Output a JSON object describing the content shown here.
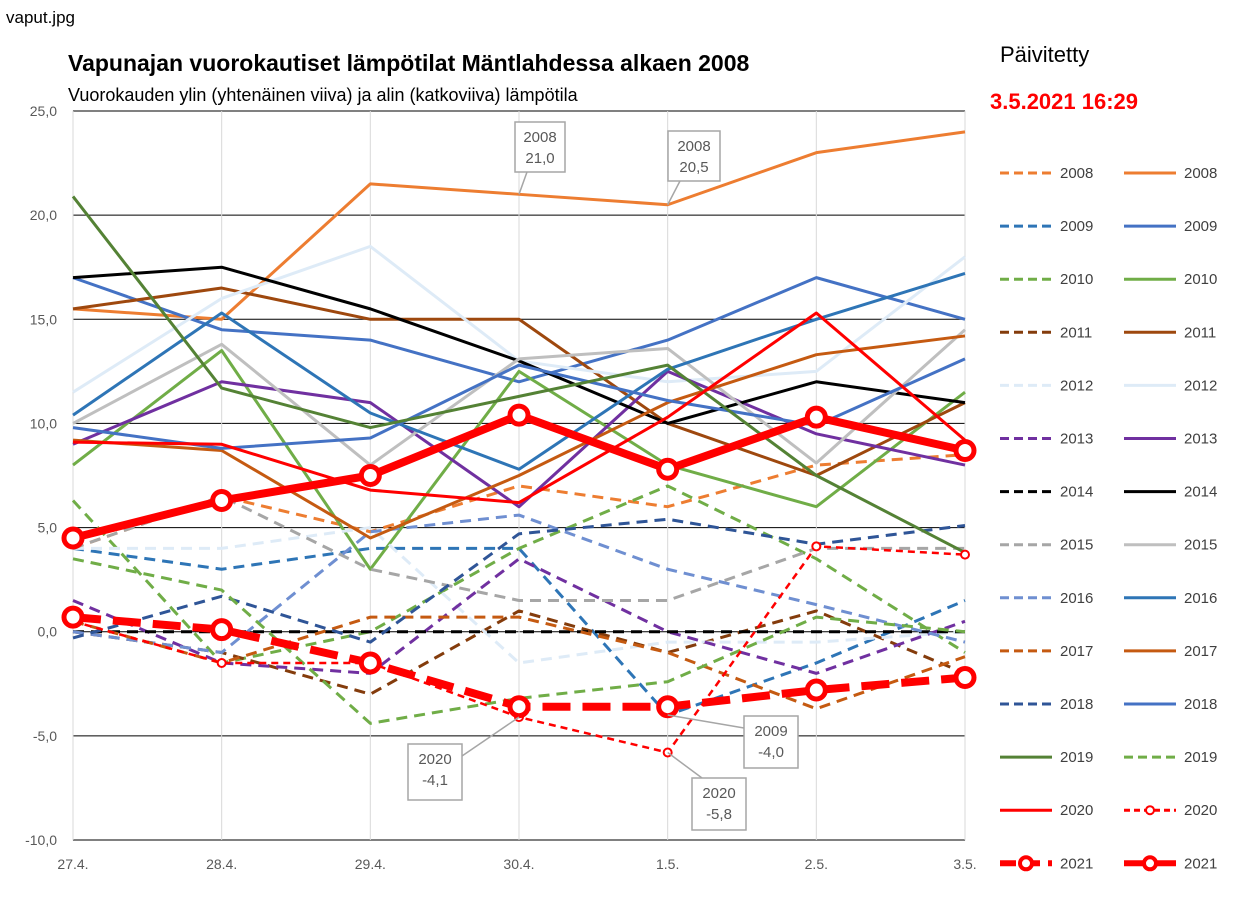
{
  "filename": "vaput.jpg",
  "title": "Vapunajan vuorokautiset lämpötilat Mäntlahdessa alkaen 2008",
  "subtitle": "Vuorokauden ylin (yhtenäinen viiva) ja alin (katkoviiva) lämpötila",
  "updated_label": "Päivitetty",
  "updated_value": "3.5.2021 16:29",
  "chart_data": {
    "type": "line",
    "categories": [
      "27.4.",
      "28.4.",
      "29.4.",
      "30.4.",
      "1.5.",
      "2.5.",
      "3.5."
    ],
    "ylim": [
      -10,
      25
    ],
    "yticks": [
      "-10,0",
      "-5,0",
      "0,0",
      "5,0",
      "10,0",
      "15,0",
      "20,0",
      "25,0"
    ],
    "grid": true,
    "legend_position": "right",
    "series": [
      {
        "name": "2008",
        "kind": "min",
        "color": "#ED7D31",
        "values": [
          4.0,
          6.5,
          4.8,
          7.0,
          6.0,
          8.0,
          8.5
        ]
      },
      {
        "name": "2008",
        "kind": "max",
        "color": "#ED7D31",
        "values": [
          15.5,
          15.0,
          21.5,
          21.0,
          20.5,
          23.0,
          24.0
        ]
      },
      {
        "name": "2009",
        "kind": "min",
        "color": "#2E75B6",
        "values": [
          4.0,
          3.0,
          4.0,
          4.0,
          -4.0,
          -1.5,
          1.5
        ]
      },
      {
        "name": "2009",
        "kind": "max",
        "color": "#4472C4",
        "values": [
          17.0,
          14.5,
          14.0,
          12.0,
          14.0,
          17.0,
          15.0
        ]
      },
      {
        "name": "2010",
        "kind": "min",
        "color": "#70AD47",
        "values": [
          6.3,
          -1.5,
          0.0,
          4.0,
          7.0,
          3.5,
          -1.0
        ]
      },
      {
        "name": "2010",
        "kind": "max",
        "color": "#70AD47",
        "values": [
          8.0,
          13.5,
          3.0,
          12.5,
          8.0,
          6.0,
          11.5
        ]
      },
      {
        "name": "2011",
        "kind": "min",
        "color": "#843C0C",
        "values": [
          0.0,
          -1.0,
          -3.0,
          1.0,
          -1.0,
          1.0,
          -2.0
        ]
      },
      {
        "name": "2011",
        "kind": "max",
        "color": "#9E480E",
        "values": [
          15.5,
          16.5,
          15.0,
          15.0,
          10.0,
          7.5,
          11.0
        ]
      },
      {
        "name": "2012",
        "kind": "min",
        "color": "#DEEBF7",
        "values": [
          4.0,
          4.0,
          5.0,
          -1.5,
          -0.5,
          -0.5,
          0.0
        ]
      },
      {
        "name": "2012",
        "kind": "max",
        "color": "#DEEBF7",
        "values": [
          11.5,
          16.0,
          18.5,
          13.0,
          12.0,
          12.5,
          18.0
        ]
      },
      {
        "name": "2013",
        "kind": "min",
        "color": "#7030A0",
        "values": [
          1.5,
          -1.5,
          -2.0,
          3.5,
          0.0,
          -2.0,
          0.5
        ]
      },
      {
        "name": "2013",
        "kind": "max",
        "color": "#7030A0",
        "values": [
          9.0,
          12.0,
          11.0,
          6.0,
          12.5,
          9.5,
          8.0
        ]
      },
      {
        "name": "2014",
        "kind": "min",
        "color": "#000000",
        "values": [
          0.0,
          0.0,
          0.0,
          0.0,
          0.0,
          0.0,
          0.0
        ]
      },
      {
        "name": "2014",
        "kind": "max",
        "color": "#000000",
        "values": [
          17.0,
          17.5,
          15.5,
          13.0,
          10.0,
          12.0,
          11.0
        ]
      },
      {
        "name": "2015",
        "kind": "min",
        "color": "#A6A6A6",
        "values": [
          4.0,
          6.5,
          3.0,
          1.5,
          1.5,
          4.0,
          4.0
        ]
      },
      {
        "name": "2015",
        "kind": "max",
        "color": "#BFBFBF",
        "values": [
          10.0,
          13.8,
          8.0,
          13.1,
          13.6,
          8.1,
          14.5
        ]
      },
      {
        "name": "2016",
        "kind": "min",
        "color": "#6F8FD1",
        "values": [
          0.0,
          -1.0,
          4.8,
          5.6,
          3.0,
          1.3,
          -0.5
        ]
      },
      {
        "name": "2016",
        "kind": "max",
        "color": "#2E75B6",
        "values": [
          10.4,
          15.3,
          10.5,
          7.8,
          12.6,
          15.0,
          17.2
        ]
      },
      {
        "name": "2017",
        "kind": "min",
        "color": "#C55A11",
        "values": [
          0.5,
          -1.5,
          0.7,
          0.7,
          -1.0,
          -3.7,
          -1.2
        ]
      },
      {
        "name": "2017",
        "kind": "max",
        "color": "#C55A11",
        "values": [
          9.2,
          8.7,
          4.5,
          7.5,
          11.0,
          13.3,
          14.2
        ]
      },
      {
        "name": "2018",
        "kind": "min",
        "color": "#2F5597",
        "values": [
          -0.3,
          1.7,
          -0.5,
          4.7,
          5.4,
          4.2,
          5.1
        ]
      },
      {
        "name": "2018",
        "kind": "max",
        "color": "#4472C4",
        "values": [
          9.8,
          8.8,
          9.3,
          12.8,
          11.1,
          9.9,
          13.1
        ]
      },
      {
        "name": "2019",
        "kind": "max",
        "color": "#548235",
        "values": [
          20.9,
          11.7,
          9.8,
          11.3,
          12.8,
          7.5,
          3.8
        ]
      },
      {
        "name": "2019",
        "kind": "min",
        "color": "#70AD47",
        "values": [
          3.5,
          2.0,
          -4.4,
          -3.2,
          -2.4,
          0.7,
          0.0
        ]
      },
      {
        "name": "2020",
        "kind": "max",
        "color": "#FF0000",
        "values": [
          9.1,
          9.0,
          6.8,
          6.2,
          10.3,
          15.3,
          9.2
        ]
      },
      {
        "name": "2020",
        "kind": "min",
        "color": "#FF0000",
        "values": [
          0.5,
          -1.5,
          -1.5,
          -4.1,
          -5.8,
          4.1,
          3.7
        ]
      },
      {
        "name": "2021",
        "kind": "min",
        "color": "#FF0000",
        "values": [
          0.7,
          0.1,
          -1.5,
          -3.6,
          -3.6,
          -2.8,
          -2.2
        ]
      },
      {
        "name": "2021",
        "kind": "max",
        "color": "#FF0000",
        "values": [
          4.5,
          6.3,
          7.5,
          10.4,
          7.8,
          10.3,
          8.7
        ]
      }
    ],
    "annotations": [
      {
        "text": [
          "2008",
          "21,0"
        ],
        "x": "30.4.",
        "y": 21.0
      },
      {
        "text": [
          "2008",
          "20,5"
        ],
        "x": "1.5.",
        "y": 20.5
      },
      {
        "text": [
          "2009",
          "-4,0"
        ],
        "x": "1.5.",
        "y": -4.0
      },
      {
        "text": [
          "2020",
          "-4,1"
        ],
        "x": "30.4.",
        "y": -4.1
      },
      {
        "text": [
          "2020",
          "-5,8"
        ],
        "x": "1.5.",
        "y": -5.8
      }
    ]
  }
}
